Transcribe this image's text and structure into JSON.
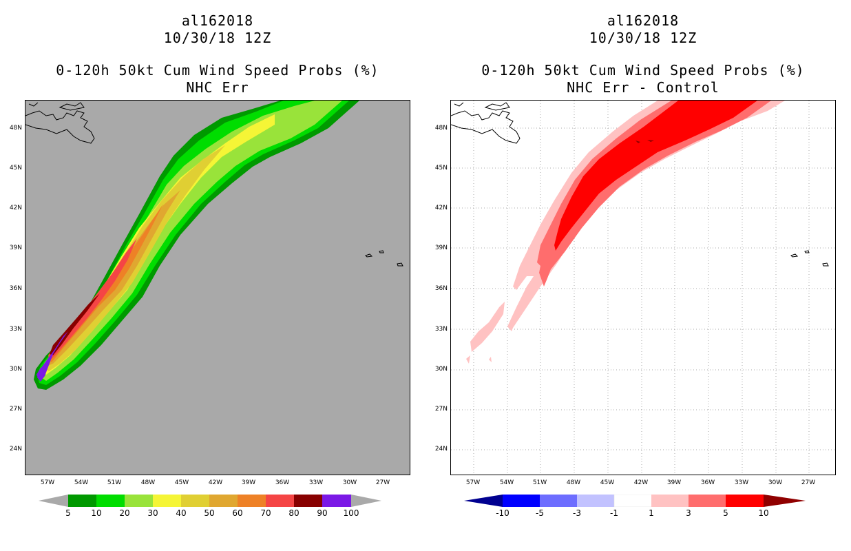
{
  "left_panel": {
    "title": {
      "storm_id": "al162018",
      "datetime": "10/30/18 12Z",
      "product": "0-120h 50kt Cum Wind Speed Probs (%)",
      "subtitle": "NHC Err"
    },
    "background_color": "#a9a9a9",
    "colorbar": {
      "colors": [
        "#a9a9a9",
        "#009900",
        "#00dd00",
        "#99e33a",
        "#f5f536",
        "#e0cf33",
        "#e0a730",
        "#ee8126",
        "#f54545",
        "#880000",
        "#7b19e6",
        "#a9a9a9"
      ],
      "labels": [
        "5",
        "10",
        "20",
        "30",
        "40",
        "50",
        "60",
        "70",
        "80",
        "90",
        "100"
      ]
    }
  },
  "right_panel": {
    "title": {
      "storm_id": "al162018",
      "datetime": "10/30/18 12Z",
      "product": "0-120h 50kt Cum Wind Speed Probs (%)",
      "subtitle": "NHC Err - Control"
    },
    "background_color": "#ffffff",
    "colorbar": {
      "colors": [
        "#000090",
        "#0000ff",
        "#6d6dff",
        "#c2c2ff",
        "#ffffff",
        "#ffc2c2",
        "#ff6d6d",
        "#ff0000",
        "#900000"
      ],
      "labels": [
        "-10",
        "-5",
        "-3",
        "-1",
        "1",
        "3",
        "5",
        "10"
      ]
    }
  },
  "axes": {
    "lat_labels": [
      "48N",
      "45N",
      "42N",
      "39N",
      "36N",
      "33N",
      "30N",
      "27N",
      "24N"
    ],
    "lon_labels": [
      "57W",
      "54W",
      "51W",
      "48W",
      "45W",
      "42W",
      "39W",
      "36W",
      "33W",
      "30W",
      "27W"
    ]
  }
}
